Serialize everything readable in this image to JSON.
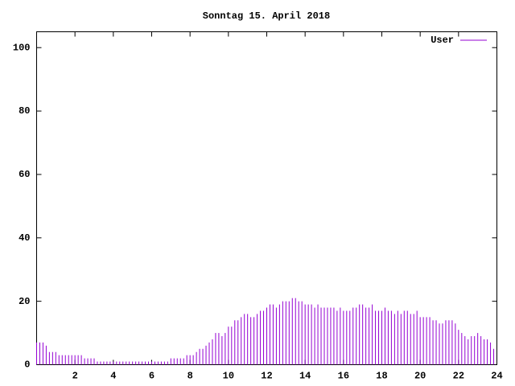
{
  "chart_data": {
    "type": "impulses",
    "title": "Sonntag 15. April 2018",
    "x": [
      0,
      0.1667,
      0.3333,
      0.5,
      0.6667,
      0.8333,
      1,
      1.1667,
      1.3333,
      1.5,
      1.6667,
      1.8333,
      2,
      2.1667,
      2.3333,
      2.5,
      2.6667,
      2.8333,
      3,
      3.1667,
      3.3333,
      3.5,
      3.6667,
      3.8333,
      4,
      4.1667,
      4.3333,
      4.5,
      4.6667,
      4.8333,
      5,
      5.1667,
      5.3333,
      5.5,
      5.6667,
      5.8333,
      6,
      6.1667,
      6.3333,
      6.5,
      6.6667,
      6.8333,
      7,
      7.1667,
      7.3333,
      7.5,
      7.6667,
      7.8333,
      8,
      8.1667,
      8.3333,
      8.5,
      8.6667,
      8.8333,
      9,
      9.1667,
      9.3333,
      9.5,
      9.6667,
      9.8333,
      10,
      10.1667,
      10.3333,
      10.5,
      10.6667,
      10.8333,
      11,
      11.1667,
      11.3333,
      11.5,
      11.6667,
      11.8333,
      12,
      12.1667,
      12.3333,
      12.5,
      12.6667,
      12.8333,
      13,
      13.1667,
      13.3333,
      13.5,
      13.6667,
      13.8333,
      14,
      14.1667,
      14.3333,
      14.5,
      14.6667,
      14.8333,
      15,
      15.1667,
      15.3333,
      15.5,
      15.6667,
      15.8333,
      16,
      16.1667,
      16.3333,
      16.5,
      16.6667,
      16.8333,
      17,
      17.1667,
      17.3333,
      17.5,
      17.6667,
      17.8333,
      18,
      18.1667,
      18.3333,
      18.5,
      18.6667,
      18.8333,
      19,
      19.1667,
      19.3333,
      19.5,
      19.6667,
      19.8333,
      20,
      20.1667,
      20.3333,
      20.5,
      20.6667,
      20.8333,
      21,
      21.1667,
      21.3333,
      21.5,
      21.6667,
      21.8333,
      22,
      22.1667,
      22.3333,
      22.5,
      22.6667,
      22.8333,
      23,
      23.1667,
      23.3333,
      23.5,
      23.6667,
      23.8333
    ],
    "series": [
      {
        "name": "User",
        "color": "#9400d3",
        "values": [
          7,
          7,
          7,
          6,
          4,
          4,
          4,
          3,
          3,
          3,
          3,
          3,
          3,
          3,
          3,
          2,
          2,
          2,
          2,
          1,
          1,
          1,
          1,
          1,
          1,
          1,
          1,
          1,
          1,
          1,
          1,
          1,
          1,
          1,
          1,
          1,
          1,
          1,
          1,
          1,
          1,
          1,
          2,
          2,
          2,
          2,
          2,
          3,
          3,
          3,
          4,
          5,
          5,
          6,
          7,
          8,
          10,
          10,
          9,
          10,
          12,
          12,
          14,
          14,
          15,
          16,
          16,
          15,
          15,
          16,
          17,
          17,
          18,
          19,
          19,
          18,
          19,
          20,
          20,
          20,
          21,
          21,
          20,
          20,
          19,
          19,
          19,
          18,
          19,
          18,
          18,
          18,
          18,
          18,
          17,
          18,
          17,
          17,
          17,
          18,
          18,
          19,
          19,
          18,
          18,
          19,
          17,
          17,
          17,
          18,
          17,
          17,
          16,
          17,
          16,
          17,
          17,
          16,
          16,
          17,
          15,
          15,
          15,
          15,
          14,
          14,
          13,
          13,
          14,
          14,
          14,
          13,
          11,
          10,
          9,
          8,
          9,
          9,
          10,
          9,
          8,
          8,
          7,
          5
        ]
      }
    ],
    "xlim": [
      0,
      24
    ],
    "xticks": [
      2,
      4,
      6,
      8,
      10,
      12,
      14,
      16,
      18,
      20,
      22,
      24
    ],
    "ylim": [
      0,
      105
    ],
    "yticks": [
      0,
      20,
      40,
      60,
      80,
      100
    ],
    "legend": "top-right"
  }
}
